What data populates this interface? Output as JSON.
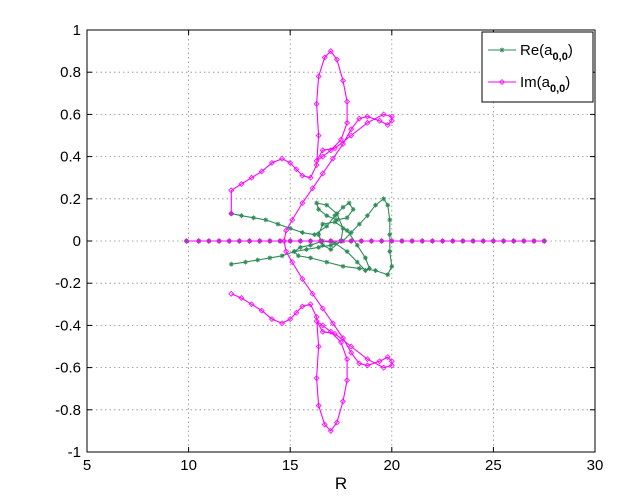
{
  "chart_data": {
    "type": "line",
    "title": "",
    "xlabel": "R",
    "ylabel": "",
    "xlim": [
      5,
      30
    ],
    "ylim": [
      -1,
      1
    ],
    "xticks": [
      "5",
      "10",
      "15",
      "20",
      "25",
      "30"
    ],
    "yticks": [
      "1",
      "0.8",
      "0.6",
      "0.4",
      "0.2",
      "0",
      "-0.2",
      "-0.4",
      "-0.6",
      "-0.8",
      "-1"
    ],
    "grid": true,
    "legend_position": "top-right",
    "series": [
      {
        "name": "Re(a",
        "subscript": "0,0",
        "close": ")",
        "color": "#2e8b57",
        "marker": "asterisk",
        "branches": [
          [
            [
              12.1,
              0.13
            ],
            [
              12.6,
              0.12
            ],
            [
              13.2,
              0.11
            ],
            [
              13.8,
              0.1
            ],
            [
              14.4,
              0.08
            ],
            [
              15.0,
              0.06
            ],
            [
              15.6,
              0.04
            ],
            [
              16.2,
              0.03
            ],
            [
              16.8,
              0.07
            ],
            [
              17.2,
              0.12
            ],
            [
              17.6,
              0.16
            ],
            [
              17.9,
              0.18
            ],
            [
              18.1,
              0.15
            ],
            [
              17.8,
              0.11
            ],
            [
              17.3,
              0.1
            ],
            [
              16.8,
              0.12
            ],
            [
              16.4,
              0.15
            ],
            [
              16.3,
              0.18
            ],
            [
              16.8,
              0.17
            ],
            [
              17.3,
              0.13
            ],
            [
              17.6,
              0.06
            ],
            [
              17.5,
              0.0
            ],
            [
              17.0,
              -0.04
            ],
            [
              16.6,
              -0.02
            ],
            [
              16.4,
              0.03
            ],
            [
              16.6,
              0.08
            ],
            [
              17.2,
              0.09
            ],
            [
              17.8,
              0.05
            ],
            [
              18.3,
              -0.02
            ],
            [
              18.7,
              -0.08
            ],
            [
              18.9,
              -0.13
            ],
            [
              18.7,
              -0.14
            ],
            [
              18.3,
              -0.1
            ],
            [
              17.8,
              -0.05
            ],
            [
              17.2,
              -0.01
            ],
            [
              16.6,
              0.0
            ],
            [
              16.0,
              -0.02
            ],
            [
              15.5,
              -0.03
            ],
            [
              15.2,
              -0.05
            ],
            [
              15.4,
              -0.07
            ],
            [
              16.0,
              -0.08
            ],
            [
              16.8,
              -0.1
            ],
            [
              17.6,
              -0.12
            ],
            [
              18.4,
              -0.13
            ],
            [
              19.2,
              -0.14
            ],
            [
              19.8,
              -0.16
            ],
            [
              20.0,
              -0.12
            ],
            [
              19.9,
              -0.05
            ],
            [
              19.9,
              0.03
            ],
            [
              19.9,
              0.1
            ],
            [
              19.8,
              0.17
            ],
            [
              19.6,
              0.2
            ],
            [
              19.2,
              0.17
            ],
            [
              18.8,
              0.12
            ],
            [
              18.4,
              0.08
            ],
            [
              18.0,
              0.04
            ],
            [
              17.6,
              0.0
            ],
            [
              17.0,
              -0.02
            ],
            [
              16.4,
              -0.03
            ],
            [
              15.8,
              -0.04
            ],
            [
              15.2,
              -0.05
            ],
            [
              14.6,
              -0.07
            ],
            [
              14.0,
              -0.08
            ],
            [
              13.4,
              -0.09
            ],
            [
              12.8,
              -0.1
            ],
            [
              12.1,
              -0.11
            ]
          ],
          [
            [
              9.9,
              0.0
            ],
            [
              10.5,
              0.0
            ],
            [
              11.0,
              0.0
            ],
            [
              11.5,
              0.0
            ],
            [
              12.0,
              0.0
            ],
            [
              12.5,
              0.0
            ],
            [
              13.0,
              0.0
            ],
            [
              13.5,
              0.0
            ],
            [
              14.0,
              0.0
            ],
            [
              14.5,
              0.0
            ],
            [
              15.0,
              0.0
            ],
            [
              15.5,
              0.0
            ],
            [
              16.0,
              0.0
            ],
            [
              16.5,
              0.0
            ],
            [
              17.0,
              0.0
            ],
            [
              17.5,
              0.0
            ],
            [
              18.0,
              0.0
            ],
            [
              18.5,
              0.0
            ],
            [
              19.0,
              0.0
            ],
            [
              19.5,
              0.0
            ],
            [
              20.0,
              0.0
            ],
            [
              20.5,
              0.0
            ],
            [
              21.0,
              0.0
            ],
            [
              21.5,
              0.0
            ],
            [
              22.0,
              0.0
            ],
            [
              22.5,
              0.0
            ],
            [
              23.0,
              0.0
            ],
            [
              23.5,
              0.0
            ],
            [
              24.0,
              0.0
            ],
            [
              24.5,
              0.0
            ],
            [
              25.0,
              0.0
            ],
            [
              25.5,
              0.0
            ],
            [
              26.0,
              0.0
            ],
            [
              26.5,
              0.0
            ],
            [
              27.0,
              0.0
            ],
            [
              27.5,
              0.0
            ]
          ]
        ]
      },
      {
        "name": "Im(a",
        "subscript": "0,0",
        "close": ")",
        "color": "#ff00ff",
        "marker": "diamond",
        "branches": [
          [
            [
              12.1,
              0.13
            ],
            [
              12.1,
              0.24
            ],
            [
              12.6,
              0.27
            ],
            [
              13.1,
              0.3
            ],
            [
              13.6,
              0.33
            ],
            [
              14.1,
              0.37
            ],
            [
              14.6,
              0.39
            ],
            [
              15.0,
              0.37
            ],
            [
              15.3,
              0.34
            ],
            [
              15.6,
              0.31
            ],
            [
              16.0,
              0.3
            ],
            [
              16.3,
              0.36
            ],
            [
              16.4,
              0.5
            ],
            [
              16.3,
              0.65
            ],
            [
              16.4,
              0.78
            ],
            [
              16.7,
              0.87
            ],
            [
              17.0,
              0.9
            ],
            [
              17.3,
              0.86
            ],
            [
              17.6,
              0.76
            ],
            [
              17.8,
              0.66
            ],
            [
              17.8,
              0.56
            ],
            [
              17.5,
              0.48
            ],
            [
              17.0,
              0.43
            ],
            [
              16.6,
              0.4
            ],
            [
              16.3,
              0.38
            ],
            [
              16.6,
              0.43
            ],
            [
              17.2,
              0.44
            ],
            [
              18.0,
              0.5
            ],
            [
              18.8,
              0.56
            ],
            [
              19.6,
              0.6
            ],
            [
              20.0,
              0.59
            ],
            [
              20.0,
              0.57
            ],
            [
              19.8,
              0.55
            ],
            [
              19.4,
              0.57
            ],
            [
              18.8,
              0.59
            ],
            [
              18.4,
              0.58
            ],
            [
              18.0,
              0.53
            ],
            [
              17.6,
              0.46
            ],
            [
              17.1,
              0.39
            ],
            [
              16.6,
              0.32
            ],
            [
              16.1,
              0.25
            ],
            [
              15.6,
              0.18
            ],
            [
              15.1,
              0.1
            ],
            [
              14.8,
              0.05
            ],
            [
              14.7,
              0.0
            ],
            [
              14.8,
              -0.05
            ],
            [
              15.1,
              -0.1
            ],
            [
              15.6,
              -0.18
            ],
            [
              16.1,
              -0.25
            ],
            [
              16.6,
              -0.32
            ],
            [
              17.1,
              -0.39
            ],
            [
              17.6,
              -0.46
            ],
            [
              18.0,
              -0.53
            ],
            [
              18.4,
              -0.58
            ],
            [
              18.8,
              -0.59
            ],
            [
              19.4,
              -0.57
            ],
            [
              19.8,
              -0.55
            ],
            [
              20.0,
              -0.57
            ],
            [
              20.0,
              -0.59
            ],
            [
              19.6,
              -0.6
            ],
            [
              18.8,
              -0.56
            ],
            [
              18.0,
              -0.5
            ],
            [
              17.2,
              -0.44
            ],
            [
              16.6,
              -0.43
            ],
            [
              16.3,
              -0.38
            ],
            [
              16.6,
              -0.4
            ],
            [
              17.0,
              -0.43
            ],
            [
              17.5,
              -0.48
            ],
            [
              17.8,
              -0.56
            ],
            [
              17.8,
              -0.66
            ],
            [
              17.6,
              -0.76
            ],
            [
              17.3,
              -0.86
            ],
            [
              17.0,
              -0.9
            ],
            [
              16.7,
              -0.87
            ],
            [
              16.4,
              -0.78
            ],
            [
              16.3,
              -0.65
            ],
            [
              16.4,
              -0.5
            ],
            [
              16.3,
              -0.36
            ],
            [
              16.0,
              -0.3
            ],
            [
              15.6,
              -0.31
            ],
            [
              15.3,
              -0.34
            ],
            [
              15.0,
              -0.37
            ],
            [
              14.6,
              -0.39
            ],
            [
              14.1,
              -0.37
            ],
            [
              13.6,
              -0.33
            ],
            [
              13.1,
              -0.3
            ],
            [
              12.6,
              -0.27
            ],
            [
              12.1,
              -0.25
            ]
          ],
          [
            [
              9.9,
              0.0
            ],
            [
              10.5,
              0.0
            ],
            [
              11.0,
              0.0
            ],
            [
              11.5,
              0.0
            ],
            [
              12.0,
              0.0
            ],
            [
              12.5,
              0.0
            ],
            [
              13.0,
              0.0
            ],
            [
              13.5,
              0.0
            ],
            [
              14.0,
              0.0
            ],
            [
              14.5,
              0.0
            ],
            [
              15.0,
              0.0
            ],
            [
              15.5,
              0.0
            ],
            [
              16.0,
              0.0
            ],
            [
              16.5,
              0.0
            ],
            [
              17.0,
              0.0
            ],
            [
              17.5,
              0.0
            ],
            [
              18.0,
              0.0
            ],
            [
              18.5,
              0.0
            ],
            [
              19.0,
              0.0
            ],
            [
              19.5,
              0.0
            ],
            [
              20.0,
              0.0
            ],
            [
              20.5,
              0.0
            ],
            [
              21.0,
              0.0
            ],
            [
              21.5,
              0.0
            ],
            [
              22.0,
              0.0
            ],
            [
              22.5,
              0.0
            ],
            [
              23.0,
              0.0
            ],
            [
              23.5,
              0.0
            ],
            [
              24.0,
              0.0
            ],
            [
              24.5,
              0.0
            ],
            [
              25.0,
              0.0
            ],
            [
              25.5,
              0.0
            ],
            [
              26.0,
              0.0
            ],
            [
              26.5,
              0.0
            ],
            [
              27.0,
              0.0
            ],
            [
              27.5,
              0.0
            ]
          ]
        ]
      }
    ]
  }
}
